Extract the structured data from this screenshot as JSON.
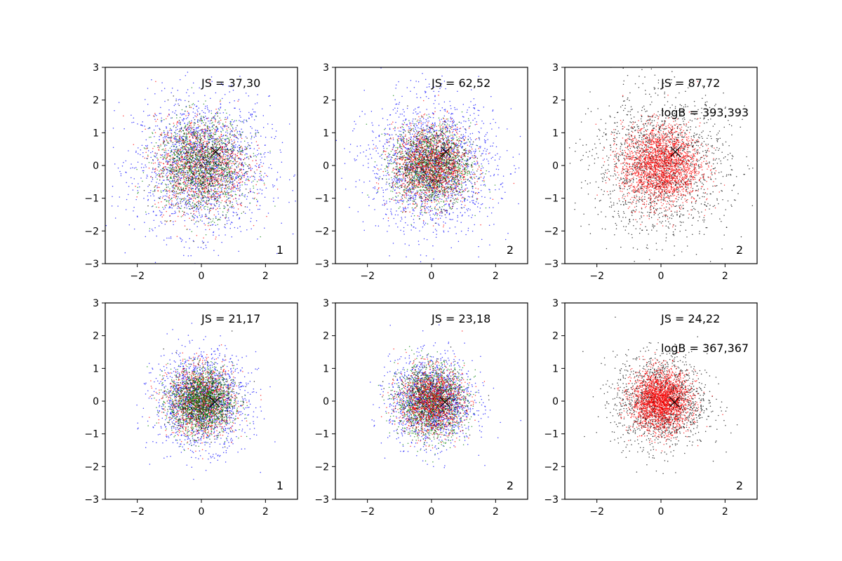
{
  "figure": {
    "rows": 2,
    "cols": 3
  },
  "colors": {
    "blue": "#0000ff",
    "green": "#008000",
    "red": "#ff0000",
    "black": "#000000"
  },
  "chart_data": [
    {
      "type": "scatter",
      "xlim": [
        -3,
        3
      ],
      "ylim": [
        -3,
        3
      ],
      "xticks": [
        -2,
        0,
        2
      ],
      "yticks": [
        -3,
        -2,
        -1,
        0,
        1,
        2,
        3
      ],
      "annotations": [
        "JS = 37,30"
      ],
      "panel_label": "1",
      "marker": {
        "x": 0.45,
        "y": 0.42
      },
      "series": [
        {
          "name": "blue",
          "color": "#0000ff",
          "n": 1700,
          "sd": 1.05,
          "mean": [
            0,
            0
          ]
        },
        {
          "name": "red",
          "color": "#ff0000",
          "n": 1100,
          "sd": 0.72,
          "mean": [
            0,
            0
          ]
        },
        {
          "name": "green",
          "color": "#008000",
          "n": 1100,
          "sd": 0.72,
          "mean": [
            0,
            0
          ]
        },
        {
          "name": "black",
          "color": "#000000",
          "n": 550,
          "sd": 0.7,
          "mean": [
            0,
            0
          ]
        }
      ]
    },
    {
      "type": "scatter",
      "xlim": [
        -3,
        3
      ],
      "ylim": [
        -3,
        3
      ],
      "xticks": [
        -2,
        0,
        2
      ],
      "yticks": [
        -3,
        -2,
        -1,
        0,
        1,
        2,
        3
      ],
      "annotations": [
        "JS = 62,52"
      ],
      "panel_label": "2",
      "marker": {
        "x": 0.45,
        "y": 0.42
      },
      "series": [
        {
          "name": "blue",
          "color": "#0000ff",
          "n": 1700,
          "sd": 1.0,
          "mean": [
            0,
            0
          ]
        },
        {
          "name": "green",
          "color": "#008000",
          "n": 1300,
          "sd": 0.6,
          "mean": [
            0,
            0
          ]
        },
        {
          "name": "red",
          "color": "#ff0000",
          "n": 1300,
          "sd": 0.6,
          "mean": [
            0,
            0
          ]
        },
        {
          "name": "black",
          "color": "#000000",
          "n": 550,
          "sd": 0.6,
          "mean": [
            0,
            0
          ]
        }
      ]
    },
    {
      "type": "scatter",
      "xlim": [
        -3,
        3
      ],
      "ylim": [
        -3,
        3
      ],
      "xticks": [
        -2,
        0,
        2
      ],
      "yticks": [
        -3,
        -2,
        -1,
        0,
        1,
        2,
        3
      ],
      "annotations": [
        "JS = 87,72",
        "logB = 393,393"
      ],
      "panel_label": "2",
      "marker": {
        "x": 0.45,
        "y": 0.42
      },
      "series": [
        {
          "name": "black",
          "color": "#000000",
          "n": 1700,
          "sd": 1.05,
          "mean": [
            0,
            0
          ]
        },
        {
          "name": "red",
          "color": "#ff0000",
          "n": 2300,
          "sd": 0.6,
          "mean": [
            0,
            0
          ]
        }
      ]
    },
    {
      "type": "scatter",
      "xlim": [
        -3,
        3
      ],
      "ylim": [
        -3,
        3
      ],
      "xticks": [
        -2,
        0,
        2
      ],
      "yticks": [
        -3,
        -2,
        -1,
        0,
        1,
        2,
        3
      ],
      "annotations": [
        "JS = 21,17"
      ],
      "panel_label": "1",
      "marker": {
        "x": 0.42,
        "y": -0.03
      },
      "series": [
        {
          "name": "blue",
          "color": "#0000ff",
          "n": 1500,
          "sd": 0.72,
          "mean": [
            0,
            0
          ]
        },
        {
          "name": "red",
          "color": "#ff0000",
          "n": 1100,
          "sd": 0.52,
          "mean": [
            0,
            0
          ]
        },
        {
          "name": "black",
          "color": "#000000",
          "n": 500,
          "sd": 0.5,
          "mean": [
            0,
            0
          ]
        },
        {
          "name": "green",
          "color": "#008000",
          "n": 1300,
          "sd": 0.5,
          "mean": [
            0,
            0
          ]
        }
      ]
    },
    {
      "type": "scatter",
      "xlim": [
        -3,
        3
      ],
      "ylim": [
        -3,
        3
      ],
      "xticks": [
        -2,
        0,
        2
      ],
      "yticks": [
        -3,
        -2,
        -1,
        0,
        1,
        2,
        3
      ],
      "annotations": [
        "JS = 23,18"
      ],
      "panel_label": "2",
      "marker": {
        "x": 0.42,
        "y": -0.03
      },
      "series": [
        {
          "name": "blue",
          "color": "#0000ff",
          "n": 1500,
          "sd": 0.65,
          "mean": [
            0,
            0
          ]
        },
        {
          "name": "green",
          "color": "#008000",
          "n": 1200,
          "sd": 0.55,
          "mean": [
            0,
            0
          ]
        },
        {
          "name": "black",
          "color": "#000000",
          "n": 500,
          "sd": 0.5,
          "mean": [
            0,
            0
          ]
        },
        {
          "name": "red",
          "color": "#ff0000",
          "n": 1100,
          "sd": 0.5,
          "mean": [
            0,
            0
          ]
        }
      ]
    },
    {
      "type": "scatter",
      "xlim": [
        -3,
        3
      ],
      "ylim": [
        -3,
        3
      ],
      "xticks": [
        -2,
        0,
        2
      ],
      "yticks": [
        -3,
        -2,
        -1,
        0,
        1,
        2,
        3
      ],
      "annotations": [
        "JS = 24,22",
        "logB = 367,367"
      ],
      "panel_label": "2",
      "marker": {
        "x": 0.42,
        "y": -0.03
      },
      "series": [
        {
          "name": "black",
          "color": "#000000",
          "n": 1500,
          "sd": 0.72,
          "mean": [
            0,
            0
          ]
        },
        {
          "name": "red",
          "color": "#ff0000",
          "n": 2300,
          "sd": 0.45,
          "mean": [
            0,
            0
          ]
        }
      ]
    }
  ]
}
